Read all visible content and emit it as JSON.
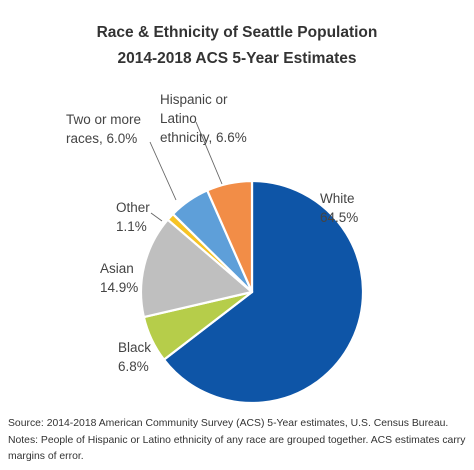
{
  "chart_data": {
    "type": "pie",
    "title_lines": [
      "Race & Ethnicity of Seattle Population",
      "2014-2018 ACS 5-Year Estimates"
    ],
    "slices": [
      {
        "name": "White",
        "value": 64.5,
        "color": "#0e55a7",
        "label_lines": [
          "White",
          "64.5%"
        ]
      },
      {
        "name": "Black",
        "value": 6.8,
        "color": "#b6cd4a",
        "label_lines": [
          "Black",
          "6.8%"
        ]
      },
      {
        "name": "Asian",
        "value": 14.9,
        "color": "#bfbfbf",
        "label_lines": [
          "Asian",
          "14.9%"
        ]
      },
      {
        "name": "Other",
        "value": 1.1,
        "color": "#f6c324",
        "label_lines": [
          "Other",
          "1.1%"
        ]
      },
      {
        "name": "Two or more races",
        "value": 6.0,
        "color": "#5e9fd9",
        "label_lines": [
          "Two or more",
          "races, 6.0%"
        ]
      },
      {
        "name": "Hispanic or Latino ethnicity",
        "value": 6.6,
        "color": "#f28d47",
        "label_lines": [
          "Hispanic or",
          "Latino",
          "ethnicity, 6.6%"
        ]
      }
    ],
    "legend": "none",
    "start": "top, clockwise"
  },
  "footnotes": [
    "Source: 2014-2018 American Community Survey (ACS) 5-Year estimates, U.S. Census Bureau.",
    "Notes: People of Hispanic or Latino ethnicity of any race are grouped together. ACS estimates carry",
    "margins of error."
  ]
}
